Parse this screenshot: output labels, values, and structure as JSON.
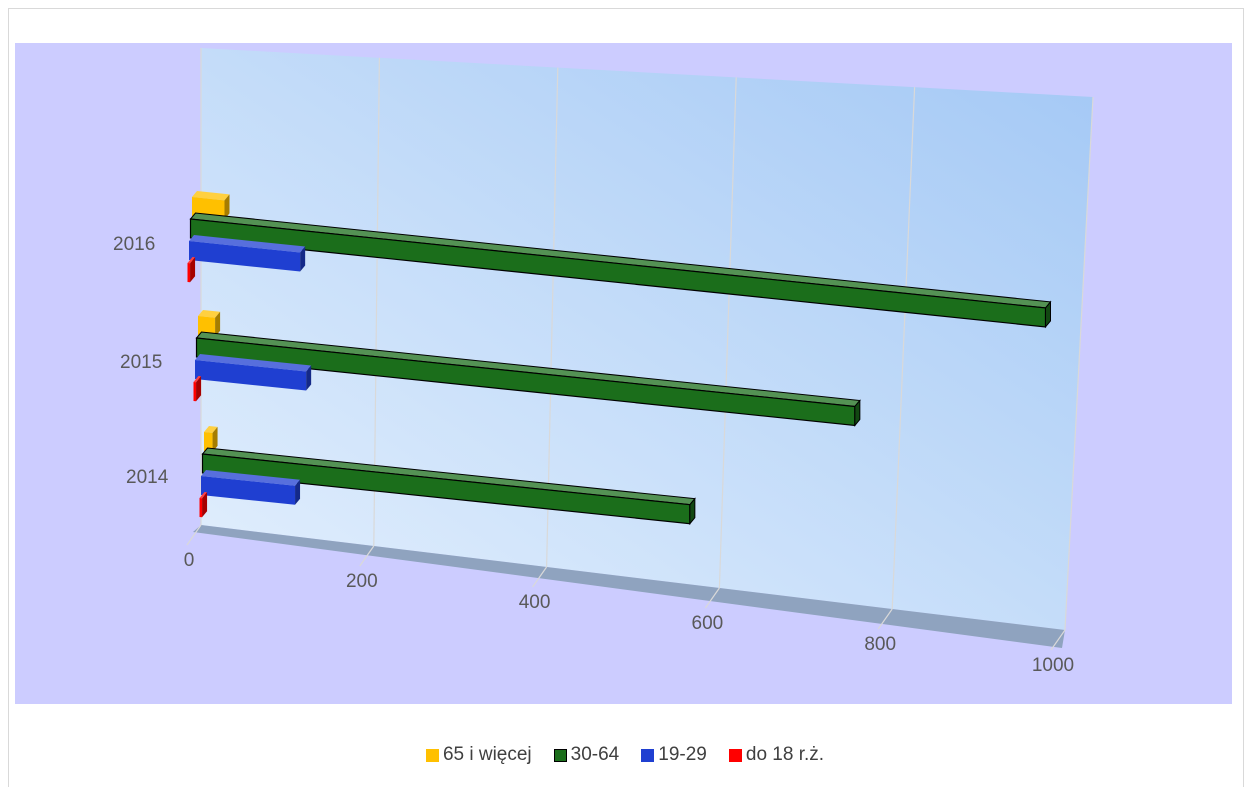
{
  "chart_data": {
    "type": "bar",
    "orientation": "horizontal",
    "style": "3d-clustered",
    "categories": [
      "2014",
      "2015",
      "2016"
    ],
    "series": [
      {
        "name": "65 i więcej",
        "color": "#ffc000",
        "values": [
          10,
          20,
          38
        ]
      },
      {
        "name": "30-64",
        "color": "#1b6e1b",
        "values": [
          570,
          770,
          1000
        ]
      },
      {
        "name": "19-29",
        "color": "#1f3fd1",
        "values": [
          110,
          130,
          130
        ]
      },
      {
        "name": "do 18 r.ż.",
        "color": "#ff0000",
        "values": [
          3,
          3,
          3
        ]
      }
    ],
    "xlim": [
      0,
      1000
    ],
    "x_ticks": [
      "0",
      "200",
      "400",
      "600",
      "800",
      "1000"
    ],
    "grid": true,
    "legend_position": "bottom",
    "plot_background": "#ccccff",
    "wall_color": "#b8d6f7"
  }
}
